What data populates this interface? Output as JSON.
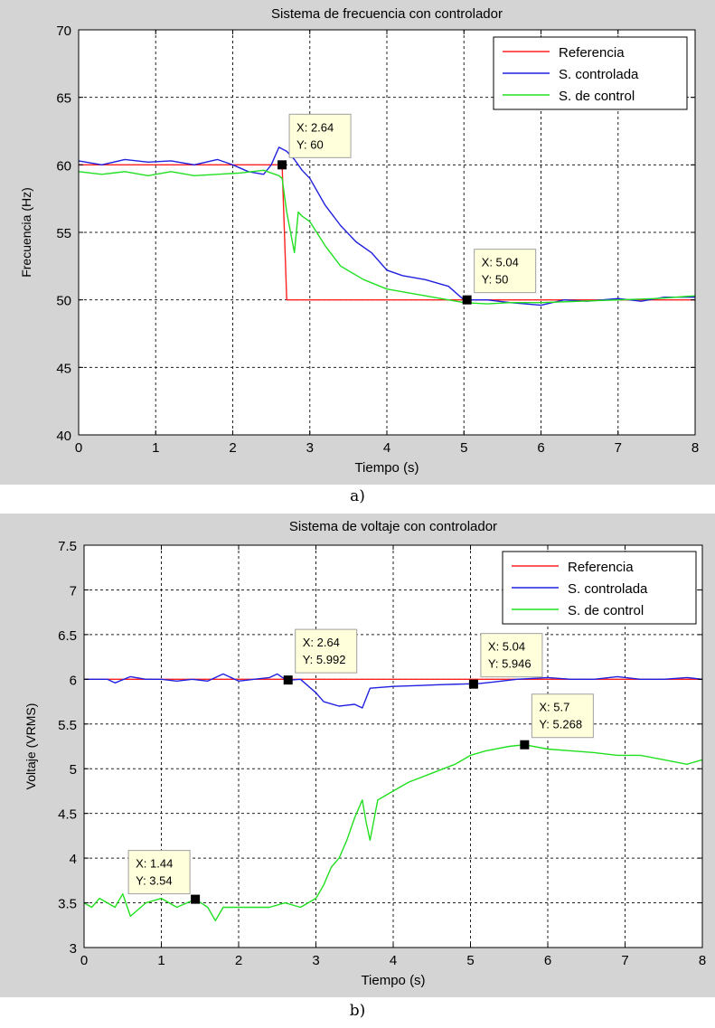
{
  "chart_data": [
    {
      "type": "line",
      "title": "Sistema de frecuencia con controlador",
      "xlabel": "Tiempo (s)",
      "ylabel": "Frecuencia (Hz)",
      "xlim": [
        0,
        8
      ],
      "ylim": [
        40,
        70
      ],
      "xticks": [
        0,
        1,
        2,
        3,
        4,
        5,
        6,
        7,
        8
      ],
      "yticks": [
        40,
        45,
        50,
        55,
        60,
        65,
        70
      ],
      "grid": true,
      "legend_position": "top-right",
      "series": [
        {
          "name": "Referencia",
          "color": "#ff2020",
          "x": [
            0,
            2.64,
            2.7,
            8
          ],
          "y": [
            60,
            60,
            50,
            50
          ]
        },
        {
          "name": "S. controlada",
          "color": "#2020e0",
          "x": [
            0,
            0.3,
            0.6,
            0.9,
            1.2,
            1.5,
            1.8,
            2.0,
            2.2,
            2.4,
            2.5,
            2.6,
            2.7,
            2.8,
            2.9,
            3.0,
            3.2,
            3.4,
            3.6,
            3.8,
            4.0,
            4.2,
            4.5,
            4.8,
            5.0,
            5.3,
            5.6,
            6.0,
            6.3,
            6.6,
            7.0,
            7.3,
            7.6,
            8.0
          ],
          "y": [
            60.3,
            60.0,
            60.4,
            60.2,
            60.3,
            60.0,
            60.4,
            60.0,
            59.5,
            59.3,
            60.0,
            61.3,
            61.0,
            60.4,
            59.6,
            59.0,
            57.0,
            55.5,
            54.3,
            53.5,
            52.2,
            51.8,
            51.5,
            51.0,
            50.0,
            50.0,
            49.8,
            49.6,
            50.0,
            49.9,
            50.1,
            49.9,
            50.2,
            50.2
          ]
        },
        {
          "name": "S. de control",
          "color": "#20e020",
          "x": [
            0,
            0.3,
            0.6,
            0.9,
            1.2,
            1.5,
            1.8,
            2.1,
            2.4,
            2.6,
            2.64,
            2.7,
            2.8,
            2.85,
            2.9,
            3.0,
            3.2,
            3.4,
            3.7,
            4.0,
            4.3,
            4.6,
            5.0,
            5.3,
            5.6,
            6.0,
            6.5,
            7.0,
            7.5,
            8.0
          ],
          "y": [
            59.5,
            59.3,
            59.5,
            59.2,
            59.5,
            59.2,
            59.3,
            59.4,
            59.6,
            59.2,
            59.0,
            56.5,
            53.5,
            56.5,
            56.2,
            55.8,
            54.0,
            52.5,
            51.5,
            50.8,
            50.5,
            50.2,
            49.8,
            49.7,
            49.8,
            49.8,
            49.9,
            50.0,
            50.1,
            50.3
          ]
        }
      ],
      "markers": [
        {
          "x": 2.64,
          "y": 60,
          "label_x": "X: 2.64",
          "label_y": "Y: 60",
          "box_at": "upper-right"
        },
        {
          "x": 5.04,
          "y": 50,
          "label_x": "X: 5.04",
          "label_y": "Y: 50",
          "box_at": "upper-right"
        }
      ]
    },
    {
      "type": "line",
      "title": "Sistema de voltaje con controlador",
      "xlabel": "Tiempo (s)",
      "ylabel": "Voltaje (VRMS)",
      "xlim": [
        0,
        8
      ],
      "ylim": [
        3,
        7.5
      ],
      "xticks": [
        0,
        1,
        2,
        3,
        4,
        5,
        6,
        7,
        8
      ],
      "yticks": [
        3,
        3.5,
        4,
        4.5,
        5,
        5.5,
        6,
        6.5,
        7,
        7.5
      ],
      "grid": true,
      "legend_position": "top-right",
      "series": [
        {
          "name": "Referencia",
          "color": "#ff2020",
          "x": [
            0,
            8
          ],
          "y": [
            6.0,
            6.0
          ]
        },
        {
          "name": "S. controlada",
          "color": "#2020e0",
          "x": [
            0,
            0.3,
            0.4,
            0.6,
            0.8,
            1.0,
            1.2,
            1.4,
            1.6,
            1.8,
            2.0,
            2.2,
            2.4,
            2.5,
            2.6,
            2.64,
            2.8,
            3.0,
            3.1,
            3.3,
            3.5,
            3.6,
            3.7,
            4.0,
            4.3,
            4.6,
            5.0,
            5.04,
            5.3,
            5.6,
            6.0,
            6.3,
            6.6,
            6.9,
            7.2,
            7.5,
            7.8,
            8.0
          ],
          "y": [
            6.0,
            6.0,
            5.96,
            6.03,
            6.0,
            6.0,
            5.98,
            6.0,
            5.98,
            6.06,
            5.98,
            6.0,
            6.02,
            6.06,
            6.0,
            5.99,
            6.0,
            5.85,
            5.75,
            5.7,
            5.72,
            5.68,
            5.9,
            5.92,
            5.93,
            5.94,
            5.95,
            5.946,
            5.97,
            6.0,
            6.02,
            6.0,
            6.0,
            6.03,
            6.0,
            6.0,
            6.02,
            6.0
          ]
        },
        {
          "name": "S. de control",
          "color": "#20e020",
          "x": [
            0,
            0.1,
            0.2,
            0.4,
            0.5,
            0.6,
            0.8,
            1.0,
            1.2,
            1.44,
            1.6,
            1.7,
            1.8,
            2.0,
            2.2,
            2.4,
            2.6,
            2.8,
            3.0,
            3.1,
            3.2,
            3.3,
            3.4,
            3.5,
            3.6,
            3.65,
            3.7,
            3.8,
            3.9,
            4.0,
            4.2,
            4.5,
            4.8,
            5.0,
            5.2,
            5.5,
            5.7,
            6.0,
            6.3,
            6.6,
            6.9,
            7.2,
            7.5,
            7.8,
            8.0
          ],
          "y": [
            3.5,
            3.45,
            3.55,
            3.45,
            3.6,
            3.35,
            3.5,
            3.55,
            3.45,
            3.54,
            3.45,
            3.3,
            3.45,
            3.45,
            3.45,
            3.45,
            3.5,
            3.45,
            3.55,
            3.7,
            3.9,
            4.0,
            4.2,
            4.45,
            4.65,
            4.4,
            4.2,
            4.65,
            4.7,
            4.75,
            4.85,
            4.95,
            5.05,
            5.15,
            5.2,
            5.25,
            5.268,
            5.22,
            5.2,
            5.18,
            5.15,
            5.15,
            5.1,
            5.05,
            5.1
          ]
        }
      ],
      "markers": [
        {
          "x": 1.44,
          "y": 3.54,
          "label_x": "X: 1.44",
          "label_y": "Y: 3.54",
          "box_at": "upper-left"
        },
        {
          "x": 2.64,
          "y": 5.992,
          "label_x": "X: 2.64",
          "label_y": "Y: 5.992",
          "box_at": "upper-right"
        },
        {
          "x": 5.04,
          "y": 5.946,
          "label_x": "X: 5.04",
          "label_y": "Y: 5.946",
          "box_at": "upper-right"
        },
        {
          "x": 5.7,
          "y": 5.268,
          "label_x": "X: 5.7",
          "label_y": "Y: 5.268",
          "box_at": "upper-right"
        }
      ]
    }
  ],
  "captions": {
    "a": "a)",
    "b": "b)"
  }
}
